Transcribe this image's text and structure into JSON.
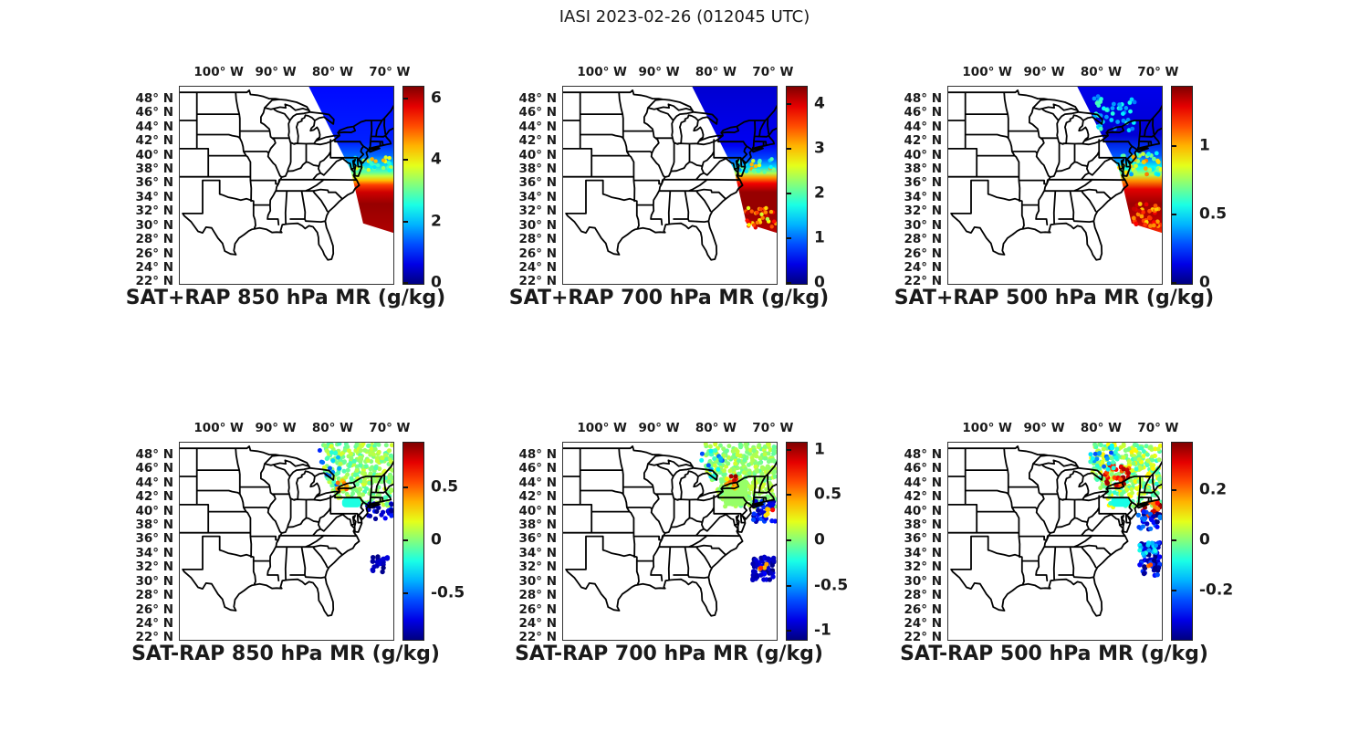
{
  "title": "IASI 2023-02-26 (012045 UTC)",
  "axes": {
    "lon_ticks": [
      "100° W",
      "90° W",
      "80° W",
      "70° W"
    ],
    "lon_values": [
      -100,
      -90,
      -80,
      -70
    ],
    "lat_ticks": [
      "48° N",
      "46° N",
      "44° N",
      "42° N",
      "40° N",
      "38° N",
      "36° N",
      "34° N",
      "32° N",
      "30° N",
      "28° N",
      "26° N",
      "24° N",
      "22° N"
    ],
    "lat_values": [
      48,
      46,
      44,
      42,
      40,
      38,
      36,
      34,
      32,
      30,
      28,
      26,
      24,
      22
    ]
  },
  "map_extent": {
    "lon": [
      -107,
      -69.5
    ],
    "lat": [
      21.8,
      49.8
    ]
  },
  "chart_data": [
    {
      "title": "SAT+RAP 850 hPa MR (g/kg)",
      "type": "swath",
      "quantity": "SAT+RAP mixing ratio",
      "level": "850 hPa",
      "units": "g/kg",
      "colorbar": {
        "min": 0,
        "max": 6.4,
        "ticks": [
          0,
          2,
          4,
          6
        ],
        "colormap": "jet"
      },
      "profile": [
        [
          0,
          0.85
        ],
        [
          0.38,
          1.0
        ],
        [
          0.47,
          1.45
        ],
        [
          0.53,
          2.1
        ],
        [
          0.58,
          2.9
        ],
        [
          0.61,
          3.6
        ],
        [
          0.64,
          4.4
        ],
        [
          0.67,
          5.2
        ],
        [
          0.72,
          5.9
        ],
        [
          0.8,
          6.25
        ],
        [
          1,
          6.1
        ]
      ],
      "clusters": [
        {
          "lon": [
            -76.5,
            -69.6
          ],
          "lat": [
            37.8,
            39.8
          ],
          "n": 30,
          "v": 3.4,
          "s": 1.2,
          "r": 2.2,
          "clip": true
        }
      ]
    },
    {
      "title": "SAT+RAP 700 hPa MR (g/kg)",
      "type": "swath",
      "quantity": "SAT+RAP mixing ratio",
      "level": "700 hPa",
      "units": "g/kg",
      "colorbar": {
        "min": 0,
        "max": 4.4,
        "ticks": [
          0,
          1,
          2,
          3,
          4
        ],
        "colormap": "jet"
      },
      "profile": [
        [
          0,
          0.35
        ],
        [
          0.4,
          0.5
        ],
        [
          0.49,
          0.85
        ],
        [
          0.55,
          1.5
        ],
        [
          0.59,
          2.4
        ],
        [
          0.62,
          3.2
        ],
        [
          0.66,
          3.9
        ],
        [
          0.72,
          4.3
        ],
        [
          0.85,
          4.3
        ],
        [
          1,
          4.15
        ]
      ],
      "clusters": [
        {
          "lon": [
            -75.5,
            -69.6
          ],
          "lat": [
            29.8,
            32.6
          ],
          "n": 35,
          "v": 3.3,
          "s": 0.9,
          "r": 2.2,
          "clip": true
        },
        {
          "lon": [
            -76.5,
            -70.0
          ],
          "lat": [
            37.6,
            39.6
          ],
          "n": 25,
          "v": 2.2,
          "s": 1.0,
          "r": 2.2,
          "clip": true
        }
      ]
    },
    {
      "title": "SAT+RAP 500 hPa MR (g/kg)",
      "type": "swath",
      "quantity": "SAT+RAP mixing ratio",
      "level": "500 hPa",
      "units": "g/kg",
      "colorbar": {
        "min": 0,
        "max": 1.44,
        "ticks": [
          0,
          0.5,
          1
        ],
        "colormap": "jet"
      },
      "profile": [
        [
          0,
          0.15
        ],
        [
          0.33,
          0.12
        ],
        [
          0.47,
          0.3
        ],
        [
          0.55,
          0.55
        ],
        [
          0.6,
          0.8
        ],
        [
          0.64,
          1.05
        ],
        [
          0.7,
          1.3
        ],
        [
          0.8,
          1.4
        ],
        [
          0.92,
          1.35
        ],
        [
          1,
          1.2
        ]
      ],
      "clusters": [
        {
          "lon": [
            -81.5,
            -74.0
          ],
          "lat": [
            43.5,
            48.5
          ],
          "n": 45,
          "v": 0.5,
          "s": 0.15,
          "r": 2.4,
          "clip": true
        },
        {
          "lon": [
            -77.0,
            -69.6
          ],
          "lat": [
            37.3,
            40.5
          ],
          "n": 55,
          "v": 0.75,
          "s": 0.35,
          "r": 2.4,
          "clip": true
        },
        {
          "lon": [
            -74.5,
            -69.6
          ],
          "lat": [
            30.0,
            33.2
          ],
          "n": 35,
          "v": 1.15,
          "s": 0.2,
          "r": 2.4,
          "clip": true
        }
      ]
    },
    {
      "title": "SAT-RAP 850 hPa MR (g/kg)",
      "type": "scatter",
      "quantity": "SAT-RAP mixing ratio difference",
      "level": "850 hPa",
      "units": "g/kg",
      "colorbar": {
        "min": -0.93,
        "max": 0.93,
        "ticks": [
          0.5,
          0,
          -0.5
        ],
        "colormap": "jet"
      },
      "clusters": [
        {
          "lon": [
            -82.0,
            -69.6
          ],
          "lat": [
            40.8,
            49.7
          ],
          "n": 330,
          "v": 0.03,
          "s": 0.14,
          "r": 2.5,
          "clip": true
        },
        {
          "lon": [
            -83.0,
            -79.0
          ],
          "lat": [
            43.5,
            48.8
          ],
          "n": 22,
          "v": -0.35,
          "s": 0.3,
          "r": 2.5,
          "clip": true
        },
        {
          "lon": [
            -79.4,
            -77.2
          ],
          "lat": [
            42.9,
            44.4
          ],
          "n": 9,
          "v": 0.42,
          "s": 0.15,
          "r": 2.5
        },
        {
          "lon": [
            -74.2,
            -69.7
          ],
          "lat": [
            38.9,
            41.2
          ],
          "n": 30,
          "v": -0.78,
          "s": 0.13,
          "r": 2.6
        },
        {
          "lon": [
            -73.2,
            -70.4
          ],
          "lat": [
            31.4,
            33.7
          ],
          "n": 22,
          "v": -0.83,
          "s": 0.1,
          "r": 2.7
        }
      ],
      "patches": [
        {
          "lon": [
            -78.5,
            -75.2
          ],
          "lat": [
            40.6,
            41.9
          ],
          "v": -0.18
        }
      ]
    },
    {
      "title": "SAT-RAP 700 hPa MR (g/kg)",
      "type": "scatter",
      "quantity": "SAT-RAP mixing ratio difference",
      "level": "700 hPa",
      "units": "g/kg",
      "colorbar": {
        "min": -1.09,
        "max": 1.09,
        "ticks": [
          1,
          0.5,
          0,
          -0.5,
          -1
        ],
        "colormap": "jet"
      },
      "clusters": [
        {
          "lon": [
            -82.0,
            -69.6
          ],
          "lat": [
            40.6,
            49.7
          ],
          "n": 380,
          "v": 0.06,
          "s": 0.13,
          "r": 2.5,
          "clip": true
        },
        {
          "lon": [
            -83.0,
            -79.0
          ],
          "lat": [
            43.5,
            48.8
          ],
          "n": 26,
          "v": -0.4,
          "s": 0.3,
          "r": 2.5,
          "clip": true
        },
        {
          "lon": [
            -79.3,
            -76.6
          ],
          "lat": [
            43.1,
            44.7
          ],
          "n": 14,
          "v": 0.55,
          "s": 0.25,
          "r": 2.5
        },
        {
          "lon": [
            -77.6,
            -76.4
          ],
          "lat": [
            44.4,
            45.1
          ],
          "n": 3,
          "v": 1.0,
          "s": 0.08,
          "r": 2.5
        },
        {
          "lon": [
            -73.6,
            -69.7
          ],
          "lat": [
            38.5,
            41.5
          ],
          "n": 45,
          "v": -0.8,
          "s": 0.25,
          "r": 2.6
        },
        {
          "lon": [
            -72.5,
            -70.2
          ],
          "lat": [
            39.2,
            40.6
          ],
          "n": 5,
          "v": 0.6,
          "s": 0.3,
          "r": 2.6
        },
        {
          "lon": [
            -73.7,
            -69.8
          ],
          "lat": [
            30.3,
            33.6
          ],
          "n": 60,
          "v": -0.95,
          "s": 0.14,
          "r": 2.7
        },
        {
          "lon": [
            -72.6,
            -71.0
          ],
          "lat": [
            31.4,
            33.0
          ],
          "n": 4,
          "v": 0.55,
          "s": 0.25,
          "r": 2.6
        }
      ],
      "patches": [
        {
          "lon": [
            -78.8,
            -74.6
          ],
          "lat": [
            40.8,
            44.6
          ],
          "v": 0.05
        }
      ]
    },
    {
      "title": "SAT-RAP 500 hPa MR (g/kg)",
      "type": "scatter",
      "quantity": "SAT-RAP mixing ratio difference",
      "level": "500 hPa",
      "units": "g/kg",
      "colorbar": {
        "min": -0.39,
        "max": 0.39,
        "ticks": [
          0.2,
          0,
          -0.2
        ],
        "colormap": "jet"
      },
      "clusters": [
        {
          "lon": [
            -82.0,
            -69.6
          ],
          "lat": [
            40.6,
            49.7
          ],
          "n": 340,
          "v": 0.02,
          "s": 0.09,
          "r": 2.5,
          "clip": true
        },
        {
          "lon": [
            -79.6,
            -75.2
          ],
          "lat": [
            43.6,
            46.8
          ],
          "n": 40,
          "v": 0.3,
          "s": 0.1,
          "r": 2.5
        },
        {
          "lon": [
            -82.5,
            -77.5
          ],
          "lat": [
            46.0,
            49.5
          ],
          "n": 25,
          "v": -0.14,
          "s": 0.1,
          "r": 2.5,
          "clip": true
        },
        {
          "lon": [
            -72.9,
            -69.7
          ],
          "lat": [
            39.2,
            41.4
          ],
          "n": 26,
          "v": 0.3,
          "s": 0.12,
          "r": 2.5
        },
        {
          "lon": [
            -73.6,
            -69.7
          ],
          "lat": [
            37.4,
            40.0
          ],
          "n": 30,
          "v": -0.3,
          "s": 0.12,
          "r": 2.6
        },
        {
          "lon": [
            -73.4,
            -69.8
          ],
          "lat": [
            30.7,
            35.6
          ],
          "n": 70,
          "v": -0.33,
          "s": 0.1,
          "r": 2.7
        },
        {
          "lon": [
            -73.4,
            -70.5
          ],
          "lat": [
            33.5,
            35.8
          ],
          "n": 18,
          "v": -0.15,
          "s": 0.08,
          "r": 2.5
        },
        {
          "lon": [
            -72.0,
            -71.3
          ],
          "lat": [
            32.2,
            32.8
          ],
          "n": 2,
          "v": 0.25,
          "s": 0.1,
          "r": 2.5
        }
      ],
      "patches": [
        {
          "lon": [
            -78.4,
            -75.1
          ],
          "lat": [
            40.7,
            42.1
          ],
          "v": -0.08
        }
      ]
    }
  ]
}
